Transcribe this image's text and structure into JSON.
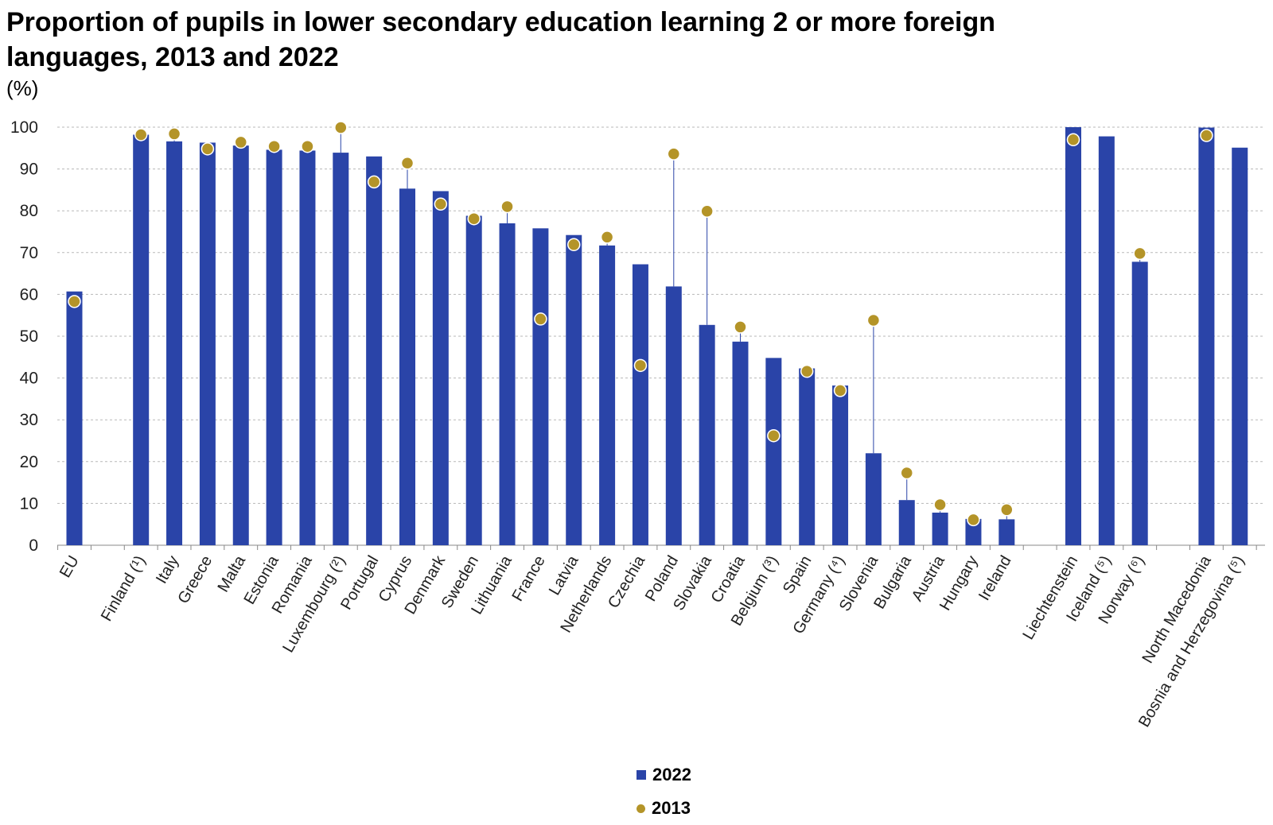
{
  "chart_data": {
    "type": "bar",
    "title": "Proportion of pupils in lower secondary education learning 2 or more foreign languages, 2013 and 2022",
    "unit_label": "(%)",
    "ylim": [
      0,
      100
    ],
    "yticks": [
      "0",
      "10",
      "20",
      "30",
      "40",
      "50",
      "60",
      "70",
      "80",
      "90",
      "100"
    ],
    "grid": true,
    "legend_position": "bottom-center",
    "colors": {
      "bar_2022": "#2a44a8",
      "dot_2013": "#b49428"
    },
    "categories": [
      "EU",
      "Finland (¹)",
      "Italy",
      "Greece",
      "Malta",
      "Estonia",
      "Romania",
      "Luxembourg (²)",
      "Portugal",
      "Cyprus",
      "Denmark",
      "Sweden",
      "Lithuania",
      "France",
      "Latvia",
      "Netherlands",
      "Czechia",
      "Poland",
      "Slovakia",
      "Croatia",
      "Belgium (³)",
      "Spain",
      "Germany (⁴)",
      "Slovenia",
      "Bulgaria",
      "Austria",
      "Hungary",
      "Ireland",
      "Liechtenstein",
      "Iceland (⁵)",
      "Norway (⁶)",
      "North Macedonia",
      "Bosnia and Herzegovina (⁵)"
    ],
    "series": [
      {
        "name": "2022",
        "type": "bar",
        "values": [
          60.7,
          98.2,
          96.6,
          96.3,
          95.6,
          94.6,
          94.4,
          93.9,
          93.0,
          85.3,
          84.7,
          78.8,
          77.0,
          75.8,
          74.2,
          71.7,
          67.2,
          61.9,
          52.7,
          48.7,
          44.8,
          42.3,
          38.2,
          22.0,
          10.8,
          7.8,
          6.3,
          6.2,
          100.0,
          97.8,
          67.8,
          99.9,
          95.1
        ]
      },
      {
        "name": "2013",
        "type": "dot",
        "values": [
          58.3,
          98.2,
          98.4,
          94.8,
          96.4,
          95.4,
          95.4,
          99.9,
          86.9,
          91.4,
          81.6,
          78.1,
          81.0,
          54.1,
          71.9,
          73.7,
          43.0,
          93.6,
          79.9,
          52.2,
          26.2,
          41.6,
          37.0,
          53.8,
          17.3,
          9.7,
          6.1,
          8.5,
          97.0,
          null,
          69.8,
          98.0,
          null
        ]
      }
    ]
  }
}
